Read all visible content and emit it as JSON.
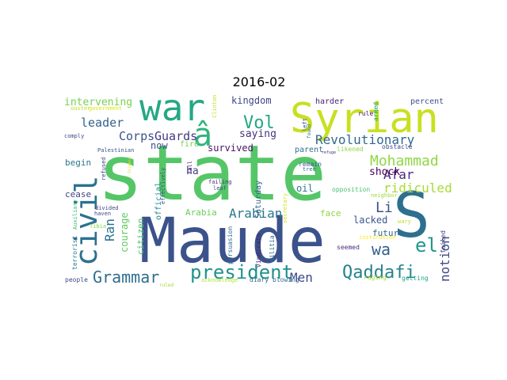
{
  "figure": {
    "title": "2016-02"
  },
  "cloud": {
    "words": [
      {
        "text": "state",
        "color": "#55c667"
      },
      {
        "text": "Maude",
        "color": "#3b528b"
      },
      {
        "text": "Syrian",
        "color": "#c8e020"
      },
      {
        "text": "S",
        "color": "#2d6f8e"
      },
      {
        "text": "war",
        "color": "#24a884"
      },
      {
        "text": "civil",
        "color": "#2d718e"
      },
      {
        "text": "â",
        "color": "#2fb47c"
      },
      {
        "text": "president",
        "color": "#20928c"
      },
      {
        "text": "Grammar",
        "color": "#2e6e8e"
      },
      {
        "text": "Qaddafi",
        "color": "#26828e"
      },
      {
        "text": "Vol",
        "color": "#22a884"
      },
      {
        "text": "wa",
        "color": "#34608d"
      },
      {
        "text": "el",
        "color": "#1f988b"
      },
      {
        "text": "Mohammad",
        "color": "#90d743"
      },
      {
        "text": "Revolutionary",
        "color": "#31688e"
      },
      {
        "text": "ridiculed",
        "color": "#a8db34"
      },
      {
        "text": "Arabian",
        "color": "#2a788e"
      },
      {
        "text": "Afar",
        "color": "#482878"
      },
      {
        "text": "Li",
        "color": "#3b528b"
      },
      {
        "text": "Men",
        "color": "#3e4a89"
      },
      {
        "text": "notion",
        "color": "#3e4989"
      },
      {
        "text": "Ran",
        "color": "#2c728e"
      },
      {
        "text": "Guards",
        "color": "#443983"
      },
      {
        "text": "Corps",
        "color": "#3a538b"
      },
      {
        "text": "leader",
        "color": "#33638d"
      },
      {
        "text": "intervening",
        "color": "#7ad151"
      },
      {
        "text": "kingdom",
        "color": "#3f4788"
      },
      {
        "text": "saying",
        "color": "#46327e"
      },
      {
        "text": "survived",
        "color": "#471164"
      },
      {
        "text": "now",
        "color": "#3d4e8a"
      },
      {
        "text": "shock",
        "color": "#440154"
      },
      {
        "text": "oil",
        "color": "#2b758e"
      },
      {
        "text": "lacked",
        "color": "#39568c"
      },
      {
        "text": "future",
        "color": "#31688e"
      },
      {
        "text": "face",
        "color": "#90d743"
      },
      {
        "text": "ha",
        "color": "#404688"
      },
      {
        "text": "Arabia",
        "color": "#6ccd5a"
      },
      {
        "text": "courage",
        "color": "#5ec962"
      },
      {
        "text": "citizen",
        "color": "#48c16e"
      },
      {
        "text": "official",
        "color": "#23898e"
      },
      {
        "text": "cease",
        "color": "#414487"
      },
      {
        "text": "begin",
        "color": "#2a778e"
      },
      {
        "text": "harder",
        "color": "#482475"
      },
      {
        "text": "percent",
        "color": "#3b528b"
      },
      {
        "text": "parent",
        "color": "#2e6f8e"
      },
      {
        "text": "fire",
        "color": "#74d055"
      },
      {
        "text": "Saturday",
        "color": "#33638d"
      },
      {
        "text": "remain",
        "color": "#365c8d"
      },
      {
        "text": "opposition",
        "color": "#4ac16d"
      },
      {
        "text": "likened",
        "color": "#8fd744"
      },
      {
        "text": "rule",
        "color": "#481668"
      },
      {
        "text": "armed",
        "color": "#1fa088"
      },
      {
        "text": "obstacle",
        "color": "#3e4989"
      },
      {
        "text": "neighbor",
        "color": "#9bd93c"
      },
      {
        "text": "failed",
        "color": "#404688"
      },
      {
        "text": "wary",
        "color": "#bddf26"
      },
      {
        "text": "institution",
        "color": "#fde725"
      },
      {
        "text": "raging",
        "color": "#addc30"
      },
      {
        "text": "getting",
        "color": "#20a386"
      },
      {
        "text": "seemed",
        "color": "#472d7b"
      },
      {
        "text": "militia",
        "color": "#2f6c8e"
      },
      {
        "text": "secretary",
        "color": "#d2e21b"
      },
      {
        "text": "vindicate",
        "color": "#482173"
      },
      {
        "text": "persuasion",
        "color": "#2f6c8e"
      },
      {
        "text": "blowing",
        "color": "#2e6e8e"
      },
      {
        "text": "diary",
        "color": "#32648e"
      },
      {
        "text": "acknowledge",
        "color": "#ade533"
      },
      {
        "text": "ruled",
        "color": "#9fda3a"
      },
      {
        "text": "people",
        "color": "#3e4c8a"
      },
      {
        "text": "terrorist",
        "color": "#2a788e"
      },
      {
        "text": "Auxiliary",
        "color": "#40bd72"
      },
      {
        "text": "Tibia",
        "color": "#7fd34e"
      },
      {
        "text": "haven",
        "color": "#3f4788"
      },
      {
        "text": "divided",
        "color": "#414487"
      },
      {
        "text": "refused",
        "color": "#424086"
      },
      {
        "text": "Palestinian",
        "color": "#3a548c"
      },
      {
        "text": "comply",
        "color": "#3f4889"
      },
      {
        "text": "government",
        "color": "#dde318"
      },
      {
        "text": "ouster",
        "color": "#bade28"
      },
      {
        "text": "effectively",
        "color": "#3b528b"
      },
      {
        "text": "Islamic",
        "color": "#d8e219"
      },
      {
        "text": "failing",
        "color": "#472e7c"
      },
      {
        "text": "fall",
        "color": "#481b6d"
      },
      {
        "text": "leaf",
        "color": "#3e4a89"
      },
      {
        "text": "Clinton",
        "color": "#bddf26"
      },
      {
        "text": "tree",
        "color": "#2e6f8e"
      },
      {
        "text": "left",
        "color": "#3c4f8a"
      },
      {
        "text": "found",
        "color": "#2c718e"
      },
      {
        "text": "refuge",
        "color": "#46337f"
      }
    ]
  }
}
